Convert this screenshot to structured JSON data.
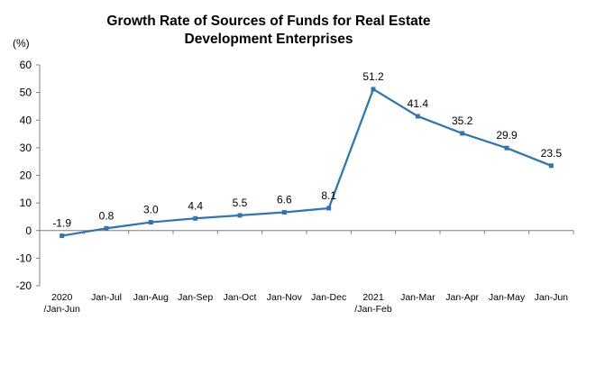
{
  "chart_data": {
    "type": "line",
    "title_line1": "Growth Rate of Sources of Funds for Real Estate",
    "title_line2": "Development Enterprises",
    "ylabel": "(%)",
    "ylim": [
      -20,
      60
    ],
    "yticks": [
      60,
      50,
      40,
      30,
      20,
      10,
      0,
      -10,
      -20
    ],
    "grid": false,
    "categories": [
      [
        "2020",
        "/Jan-Jun"
      ],
      [
        "Jan-Jul"
      ],
      [
        "Jan-Aug"
      ],
      [
        "Jan-Sep"
      ],
      [
        "Jan-Oct"
      ],
      [
        "Jan-Nov"
      ],
      [
        "Jan-Dec"
      ],
      [
        "2021",
        "/Jan-Feb"
      ],
      [
        "Jan-Mar"
      ],
      [
        "Jan-Apr"
      ],
      [
        "Jan-May"
      ],
      [
        "Jan-Jun"
      ]
    ],
    "values": [
      -1.9,
      0.8,
      3.0,
      4.4,
      5.5,
      6.6,
      8.1,
      51.2,
      41.4,
      35.2,
      29.9,
      23.5
    ],
    "data_labels": [
      "-1.9",
      "0.8",
      "3.0",
      "4.4",
      "5.5",
      "6.6",
      "8.1",
      "51.2",
      "41.4",
      "35.2",
      "29.9",
      "23.5"
    ],
    "line_color": "#2E75B6",
    "axis_color": "#7F7F7F"
  }
}
